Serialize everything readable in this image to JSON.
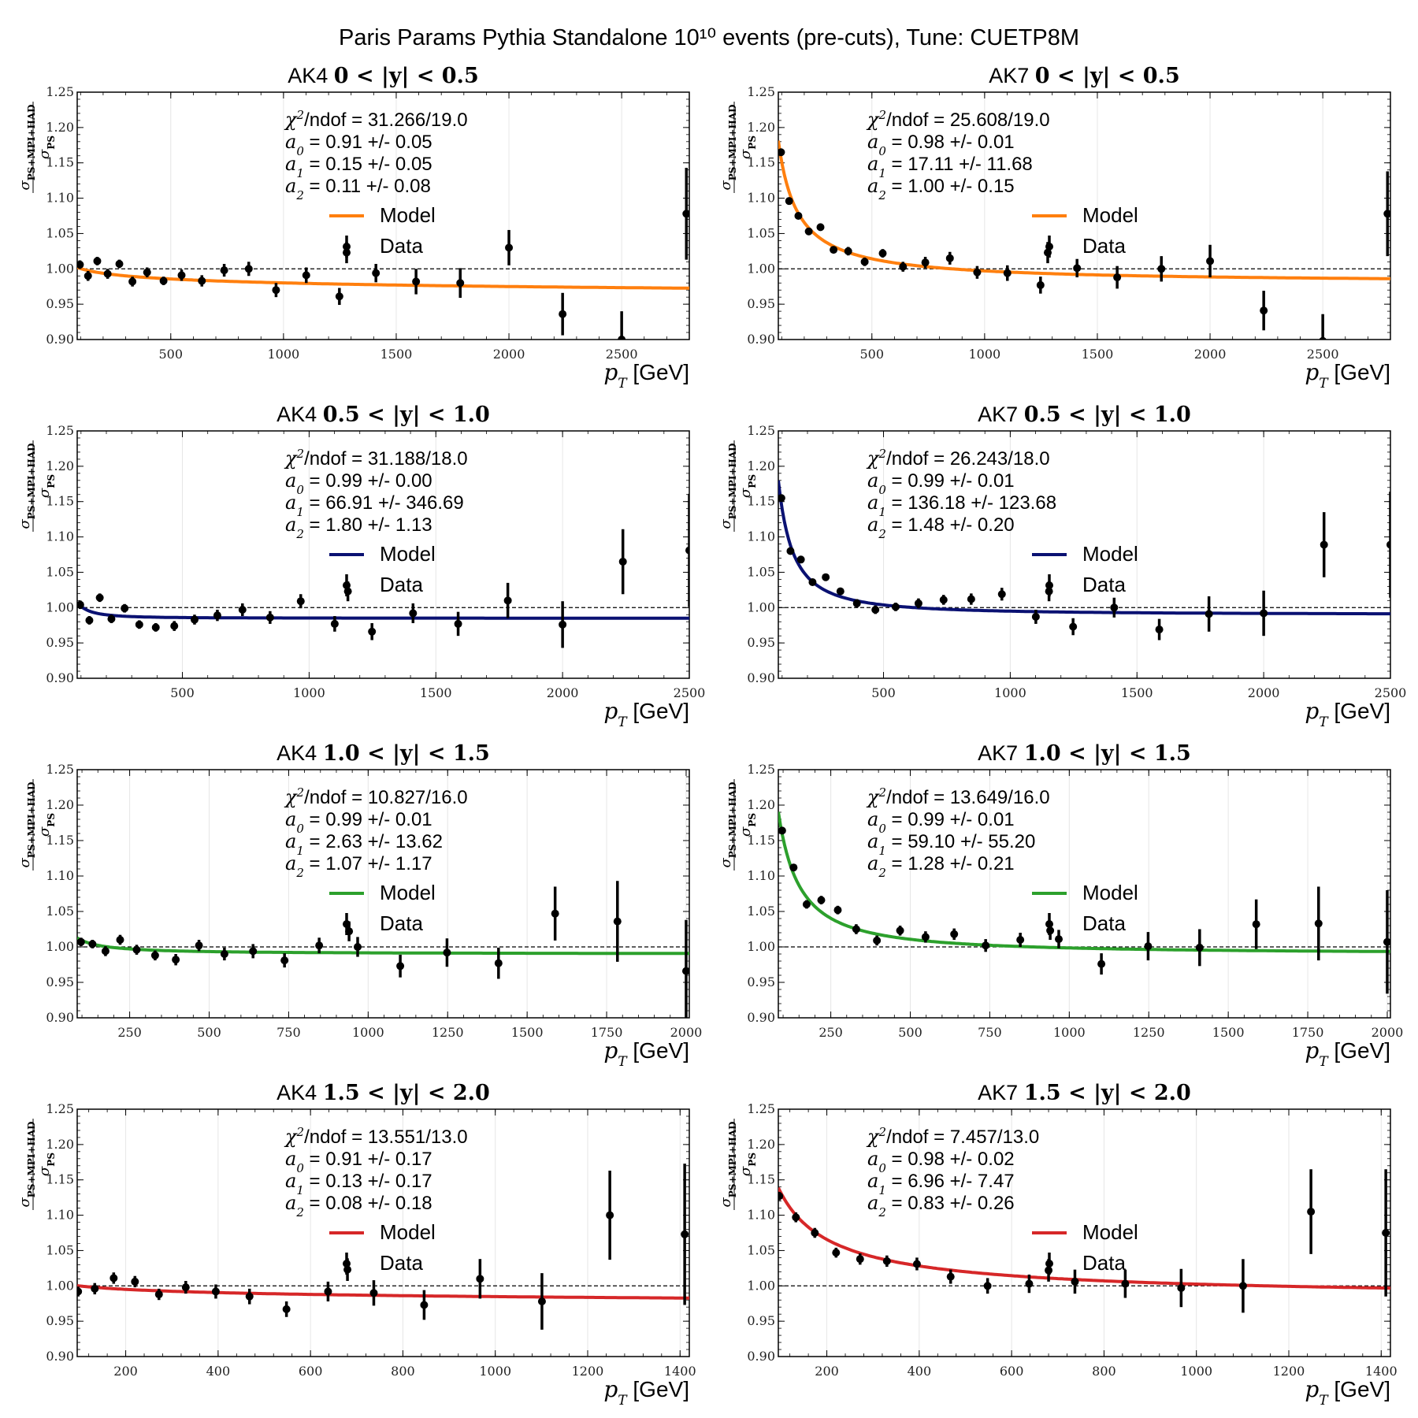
{
  "suptitle": "Paris Params Pythia Standalone 10¹⁰ events (pre-cuts), Tune: CUETP8M",
  "chart_data": [
    {
      "type": "scatter",
      "title_prefix": "AK4",
      "title_range": "0 < |y| < 0.5",
      "xlabel_math": "pT",
      "xlabel_unit": "[GeV]",
      "ylabel_num": "σPS+MPI+HAD",
      "ylabel_den": "σPS",
      "xlim": [
        85,
        2800
      ],
      "ylim": [
        0.9,
        1.25
      ],
      "xticks": [
        500,
        1000,
        1500,
        2000,
        2500
      ],
      "yticks": [
        0.9,
        0.95,
        1.0,
        1.05,
        1.1,
        1.15,
        1.2,
        1.25
      ],
      "ref_line": 1.0,
      "model_color": "#ff7f0e",
      "stats": {
        "chi2": "31.266/19.0",
        "a0": "0.91 +/- 0.05",
        "a1": "0.15 +/- 0.05",
        "a2": "0.11 +/- 0.08"
      },
      "legend": {
        "model": "Model",
        "data": "Data"
      },
      "model": {
        "a0": 0.91,
        "a1": 0.15,
        "a2": 0.11
      },
      "data": {
        "x": [
          97,
          133,
          174,
          220,
          272,
          330,
          395,
          468,
          548,
          638,
          737,
          846,
          967,
          1101,
          1248,
          1280,
          1410,
          1588,
          1784,
          2000,
          2238,
          2500,
          2787
        ],
        "y": [
          1.006,
          0.99,
          1.011,
          0.993,
          1.007,
          0.982,
          0.995,
          0.983,
          0.991,
          0.983,
          0.998,
          1.0,
          0.97,
          0.991,
          0.961,
          1.023,
          0.994,
          0.982,
          0.98,
          1.03,
          0.936,
          0.9,
          1.078
        ],
        "err": [
          0.006,
          0.007,
          0.006,
          0.007,
          0.006,
          0.007,
          0.007,
          0.006,
          0.008,
          0.008,
          0.009,
          0.01,
          0.01,
          0.011,
          0.012,
          0.015,
          0.013,
          0.018,
          0.021,
          0.025,
          0.03,
          0.04,
          0.065
        ]
      }
    },
    {
      "type": "scatter",
      "title_prefix": "AK7",
      "title_range": "0 < |y| < 0.5",
      "xlabel_math": "pT",
      "xlabel_unit": "[GeV]",
      "ylabel_num": "σPS+MPI+HAD",
      "ylabel_den": "σPS",
      "xlim": [
        85,
        2800
      ],
      "ylim": [
        0.9,
        1.25
      ],
      "xticks": [
        500,
        1000,
        1500,
        2000,
        2500
      ],
      "yticks": [
        0.9,
        0.95,
        1.0,
        1.05,
        1.1,
        1.15,
        1.2,
        1.25
      ],
      "ref_line": 1.0,
      "model_color": "#ff7f0e",
      "stats": {
        "chi2": "25.608/19.0",
        "a0": "0.98 +/- 0.01",
        "a1": "17.11 +/- 11.68",
        "a2": "1.00 +/- 0.15"
      },
      "legend": {
        "model": "Model",
        "data": "Data"
      },
      "model": {
        "a0": 0.98,
        "a1": 17.11,
        "a2": 1.0
      },
      "data": {
        "x": [
          97,
          133,
          174,
          220,
          272,
          330,
          395,
          468,
          548,
          638,
          737,
          846,
          967,
          1101,
          1248,
          1280,
          1410,
          1588,
          1784,
          2000,
          2238,
          2500,
          2787
        ],
        "y": [
          1.165,
          1.096,
          1.075,
          1.053,
          1.059,
          1.027,
          1.025,
          1.01,
          1.022,
          1.003,
          1.009,
          1.015,
          0.995,
          0.994,
          0.977,
          1.023,
          1.001,
          0.988,
          1.0,
          1.011,
          0.941,
          0.898,
          1.078
        ],
        "err": [
          0.005,
          0.005,
          0.005,
          0.005,
          0.005,
          0.005,
          0.006,
          0.006,
          0.006,
          0.007,
          0.008,
          0.009,
          0.009,
          0.011,
          0.012,
          0.015,
          0.013,
          0.016,
          0.018,
          0.023,
          0.028,
          0.038,
          0.06
        ]
      }
    },
    {
      "type": "scatter",
      "title_prefix": "AK4",
      "title_range": "0.5 < |y| < 1.0",
      "xlabel_math": "pT",
      "xlabel_unit": "[GeV]",
      "ylabel_num": "σPS+MPI+HAD",
      "ylabel_den": "σPS",
      "xlim": [
        85,
        2500
      ],
      "ylim": [
        0.9,
        1.25
      ],
      "xticks": [
        500,
        1000,
        1500,
        2000,
        2500
      ],
      "yticks": [
        0.9,
        0.95,
        1.0,
        1.05,
        1.1,
        1.15,
        1.2,
        1.25
      ],
      "ref_line": 1.0,
      "model_color": "#0a1172",
      "stats": {
        "chi2": "31.188/18.0",
        "a0": "0.99 +/- 0.00",
        "a1": "66.91 +/- 346.69",
        "a2": "1.80 +/- 1.13"
      },
      "legend": {
        "model": "Model",
        "data": "Data"
      },
      "model": {
        "a0": 0.985,
        "a1": 66.91,
        "a2": 1.8
      },
      "data": {
        "x": [
          97,
          133,
          174,
          220,
          272,
          330,
          395,
          468,
          548,
          638,
          737,
          846,
          967,
          1101,
          1153,
          1248,
          1410,
          1588,
          1784,
          2000,
          2238,
          2500
        ],
        "y": [
          1.004,
          0.982,
          1.014,
          0.984,
          0.999,
          0.976,
          0.972,
          0.974,
          0.983,
          0.989,
          0.997,
          0.986,
          1.009,
          0.977,
          1.023,
          0.966,
          0.992,
          0.977,
          1.01,
          0.976,
          1.065,
          1.081
        ],
        "err": [
          0.006,
          0.006,
          0.006,
          0.006,
          0.006,
          0.006,
          0.006,
          0.007,
          0.007,
          0.008,
          0.009,
          0.009,
          0.01,
          0.011,
          0.014,
          0.012,
          0.014,
          0.017,
          0.025,
          0.033,
          0.046,
          0.08
        ]
      }
    },
    {
      "type": "scatter",
      "title_prefix": "AK7",
      "title_range": "0.5 < |y| < 1.0",
      "xlabel_math": "pT",
      "xlabel_unit": "[GeV]",
      "ylabel_num": "σPS+MPI+HAD",
      "ylabel_den": "σPS",
      "xlim": [
        85,
        2500
      ],
      "ylim": [
        0.9,
        1.25
      ],
      "xticks": [
        500,
        1000,
        1500,
        2000,
        2500
      ],
      "yticks": [
        0.9,
        0.95,
        1.0,
        1.05,
        1.1,
        1.15,
        1.2,
        1.25
      ],
      "ref_line": 1.0,
      "model_color": "#0a1172",
      "stats": {
        "chi2": "26.243/18.0",
        "a0": "0.99 +/- 0.01",
        "a1": "136.18 +/- 123.68",
        "a2": "1.48 +/- 0.20"
      },
      "legend": {
        "model": "Model",
        "data": "Data"
      },
      "model": {
        "a0": 0.99,
        "a1": 136.18,
        "a2": 1.48
      },
      "data": {
        "x": [
          97,
          133,
          174,
          220,
          272,
          330,
          395,
          468,
          548,
          638,
          737,
          846,
          967,
          1101,
          1153,
          1248,
          1410,
          1588,
          1784,
          2000,
          2238,
          2500
        ],
        "y": [
          1.155,
          1.08,
          1.068,
          1.036,
          1.043,
          1.023,
          1.006,
          0.997,
          1.001,
          1.006,
          1.011,
          1.012,
          1.019,
          0.987,
          1.023,
          0.973,
          1.0,
          0.969,
          0.991,
          0.992,
          1.089,
          1.089
        ],
        "err": [
          0.005,
          0.005,
          0.005,
          0.005,
          0.005,
          0.005,
          0.006,
          0.006,
          0.006,
          0.007,
          0.007,
          0.008,
          0.009,
          0.01,
          0.014,
          0.012,
          0.014,
          0.015,
          0.025,
          0.032,
          0.046,
          0.075
        ]
      }
    },
    {
      "type": "scatter",
      "title_prefix": "AK4",
      "title_range": "1.0 < |y| < 1.5",
      "xlabel_math": "pT",
      "xlabel_unit": "[GeV]",
      "ylabel_num": "σPS+MPI+HAD",
      "ylabel_den": "σPS",
      "xlim": [
        85,
        2010
      ],
      "ylim": [
        0.9,
        1.25
      ],
      "xticks": [
        250,
        500,
        750,
        1000,
        1250,
        1500,
        1750,
        2000
      ],
      "yticks": [
        0.9,
        0.95,
        1.0,
        1.05,
        1.1,
        1.15,
        1.2,
        1.25
      ],
      "ref_line": 1.0,
      "model_color": "#2ca02c",
      "stats": {
        "chi2": "10.827/16.0",
        "a0": "0.99 +/- 0.01",
        "a1": "2.63 +/- 13.62",
        "a2": "1.07 +/- 1.17"
      },
      "legend": {
        "model": "Model",
        "data": "Data"
      },
      "model": {
        "a0": 0.99,
        "a1": 2.63,
        "a2": 1.07
      },
      "data": {
        "x": [
          97,
          133,
          174,
          220,
          272,
          330,
          395,
          468,
          548,
          638,
          737,
          846,
          940,
          967,
          1101,
          1248,
          1410,
          1588,
          1784,
          2000
        ],
        "y": [
          1.007,
          1.004,
          0.994,
          1.01,
          0.996,
          0.988,
          0.982,
          1.002,
          0.99,
          0.994,
          0.981,
          1.002,
          1.022,
          1.0,
          0.973,
          0.992,
          0.977,
          1.047,
          1.036,
          0.966
        ],
        "err": [
          0.006,
          0.006,
          0.007,
          0.007,
          0.007,
          0.007,
          0.008,
          0.008,
          0.009,
          0.01,
          0.01,
          0.011,
          0.014,
          0.014,
          0.016,
          0.02,
          0.022,
          0.038,
          0.057,
          0.072
        ]
      }
    },
    {
      "type": "scatter",
      "title_prefix": "AK7",
      "title_range": "1.0 < |y| < 1.5",
      "xlabel_math": "pT",
      "xlabel_unit": "[GeV]",
      "ylabel_num": "σPS+MPI+HAD",
      "ylabel_den": "σPS",
      "xlim": [
        85,
        2010
      ],
      "ylim": [
        0.9,
        1.25
      ],
      "xticks": [
        250,
        500,
        750,
        1000,
        1250,
        1500,
        1750,
        2000
      ],
      "yticks": [
        0.9,
        0.95,
        1.0,
        1.05,
        1.1,
        1.15,
        1.2,
        1.25
      ],
      "ref_line": 1.0,
      "model_color": "#2ca02c",
      "stats": {
        "chi2": "13.649/16.0",
        "a0": "0.99 +/- 0.01",
        "a1": "59.10 +/- 55.20",
        "a2": "1.28 +/- 0.21"
      },
      "legend": {
        "model": "Model",
        "data": "Data"
      },
      "model": {
        "a0": 0.99,
        "a1": 59.1,
        "a2": 1.28
      },
      "data": {
        "x": [
          97,
          133,
          174,
          220,
          272,
          330,
          395,
          468,
          548,
          638,
          737,
          846,
          940,
          967,
          1101,
          1248,
          1410,
          1588,
          1784,
          2000
        ],
        "y": [
          1.164,
          1.112,
          1.06,
          1.066,
          1.052,
          1.025,
          1.009,
          1.023,
          1.014,
          1.018,
          1.002,
          1.01,
          1.023,
          1.011,
          0.976,
          1.001,
          0.999,
          1.032,
          1.033,
          1.007
        ],
        "err": [
          0.005,
          0.005,
          0.006,
          0.006,
          0.006,
          0.007,
          0.007,
          0.007,
          0.008,
          0.008,
          0.009,
          0.01,
          0.013,
          0.013,
          0.015,
          0.02,
          0.026,
          0.035,
          0.052,
          0.073
        ]
      }
    },
    {
      "type": "scatter",
      "title_prefix": "AK4",
      "title_range": "1.5 < |y| < 2.0",
      "xlabel_math": "pT",
      "xlabel_unit": "[GeV]",
      "ylabel_num": "σPS+MPI+HAD",
      "ylabel_den": "σPS",
      "xlim": [
        95,
        1420
      ],
      "ylim": [
        0.9,
        1.25
      ],
      "xticks": [
        200,
        400,
        600,
        800,
        1000,
        1200,
        1400
      ],
      "yticks": [
        0.9,
        0.95,
        1.0,
        1.05,
        1.1,
        1.15,
        1.2,
        1.25
      ],
      "ref_line": 1.0,
      "model_color": "#d62728",
      "stats": {
        "chi2": "13.551/13.0",
        "a0": "0.91 +/- 0.17",
        "a1": "0.13 +/- 0.17",
        "a2": "0.08 +/- 0.18"
      },
      "legend": {
        "model": "Model",
        "data": "Data"
      },
      "model": {
        "a0": 0.91,
        "a1": 0.13,
        "a2": 0.08
      },
      "data": {
        "x": [
          97,
          133,
          174,
          220,
          272,
          330,
          395,
          468,
          548,
          638,
          680,
          737,
          846,
          967,
          1101,
          1248,
          1410
        ],
        "y": [
          0.992,
          0.996,
          1.011,
          1.006,
          0.988,
          0.998,
          0.992,
          0.985,
          0.967,
          0.992,
          1.023,
          0.99,
          0.973,
          1.01,
          0.978,
          1.1,
          1.073
        ],
        "err": [
          0.007,
          0.008,
          0.008,
          0.008,
          0.008,
          0.009,
          0.01,
          0.011,
          0.011,
          0.014,
          0.016,
          0.018,
          0.021,
          0.028,
          0.04,
          0.063,
          0.1
        ]
      }
    },
    {
      "type": "scatter",
      "title_prefix": "AK7",
      "title_range": "1.5 < |y| < 2.0",
      "xlabel_math": "pT",
      "xlabel_unit": "[GeV]",
      "ylabel_num": "σPS+MPI+HAD",
      "ylabel_den": "σPS",
      "xlim": [
        95,
        1420
      ],
      "ylim": [
        0.9,
        1.25
      ],
      "xticks": [
        200,
        400,
        600,
        800,
        1000,
        1200,
        1400
      ],
      "yticks": [
        0.9,
        0.95,
        1.0,
        1.05,
        1.1,
        1.15,
        1.2,
        1.25
      ],
      "ref_line": 1.0,
      "model_color": "#d62728",
      "stats": {
        "chi2": "7.457/13.0",
        "a0": "0.98 +/- 0.02",
        "a1": "6.96 +/- 7.47",
        "a2": "0.83 +/- 0.26"
      },
      "legend": {
        "model": "Model",
        "data": "Data"
      },
      "model": {
        "a0": 0.98,
        "a1": 6.96,
        "a2": 0.83
      },
      "data": {
        "x": [
          97,
          133,
          174,
          220,
          272,
          330,
          395,
          468,
          548,
          638,
          680,
          737,
          846,
          967,
          1101,
          1248,
          1410
        ],
        "y": [
          1.127,
          1.097,
          1.075,
          1.047,
          1.038,
          1.035,
          1.031,
          1.013,
          1.0,
          1.003,
          1.022,
          1.006,
          1.003,
          0.997,
          1.0,
          1.105,
          1.075
        ],
        "err": [
          0.006,
          0.007,
          0.007,
          0.007,
          0.008,
          0.008,
          0.009,
          0.01,
          0.011,
          0.013,
          0.016,
          0.017,
          0.02,
          0.027,
          0.038,
          0.06,
          0.09
        ]
      }
    }
  ]
}
